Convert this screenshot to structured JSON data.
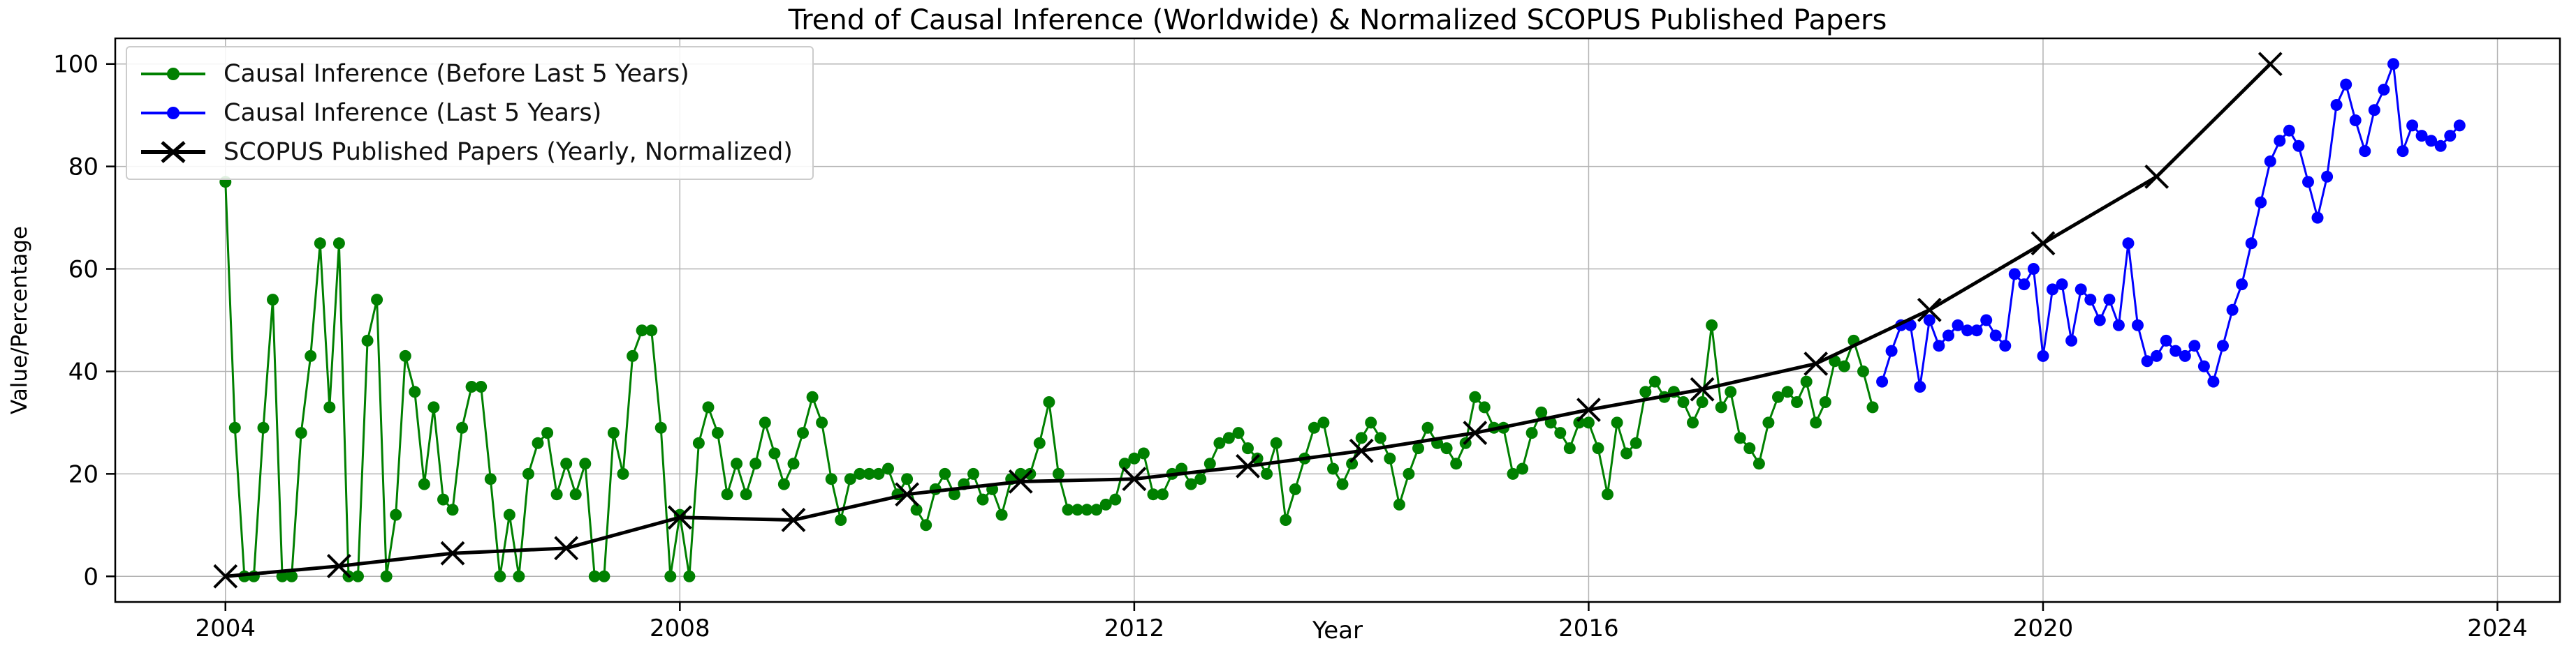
{
  "title": "Trend of Causal Inference (Worldwide) & Normalized SCOPUS Published Papers",
  "chart_data": {
    "type": "line",
    "title": "Trend of Causal Inference (Worldwide) & Normalized SCOPUS Published Papers",
    "xlabel": "Year",
    "ylabel": "Value/Percentage",
    "xlim": [
      2003.03,
      2024.55
    ],
    "ylim": [
      -5,
      105
    ],
    "grid": true,
    "grid_color": "#b3b3b3",
    "axis_color": "#000000",
    "background_color": "#ffffff",
    "x_ticks": [
      2004,
      2008,
      2012,
      2016,
      2020,
      2024
    ],
    "y_ticks": [
      0,
      20,
      40,
      60,
      80,
      100
    ],
    "legend_position": "upper-left",
    "series": [
      {
        "name": "Causal Inference (Before Last 5 Years)",
        "color": "#008000",
        "marker": "circle",
        "line_width": 3,
        "x_start": 2004.0,
        "x_step_years": 0.0833333,
        "values": [
          77,
          29,
          0,
          0,
          29,
          54,
          0,
          0,
          28,
          43,
          65,
          33,
          65,
          0,
          0,
          46,
          54,
          0,
          12,
          43,
          36,
          18,
          33,
          15,
          13,
          29,
          37,
          37,
          19,
          0,
          12,
          0,
          20,
          26,
          28,
          16,
          22,
          16,
          22,
          0,
          0,
          28,
          20,
          43,
          48,
          48,
          29,
          0,
          12,
          0,
          26,
          33,
          28,
          16,
          22,
          16,
          22,
          30,
          24,
          18,
          22,
          28,
          35,
          30,
          19,
          11,
          19,
          20,
          20,
          20,
          21,
          16,
          19,
          13,
          10,
          17,
          20,
          16,
          18,
          20,
          15,
          17,
          12,
          19,
          20,
          20,
          26,
          34,
          20,
          13,
          13,
          13,
          13,
          14,
          15,
          22,
          23,
          24,
          16,
          16,
          20,
          21,
          18,
          19,
          22,
          26,
          27,
          28,
          25,
          23,
          20,
          26,
          11,
          17,
          23,
          29,
          30,
          21,
          18,
          22,
          27,
          30,
          27,
          23,
          14,
          20,
          25,
          29,
          26,
          25,
          22,
          26,
          35,
          33,
          29,
          29,
          20,
          21,
          28,
          32,
          30,
          28,
          25,
          30,
          30,
          25,
          16,
          30,
          24,
          26,
          36,
          38,
          35,
          36,
          34,
          30,
          34,
          49,
          33,
          36,
          27,
          25,
          22,
          30,
          35,
          36,
          34,
          38,
          30,
          34,
          42,
          41,
          46,
          40,
          33
        ]
      },
      {
        "name": "Causal Inference (Last 5 Years)",
        "color": "#0000ff",
        "marker": "circle",
        "line_width": 3,
        "x_start": 2018.5833,
        "x_step_years": 0.0833333,
        "values": [
          38,
          44,
          49,
          49,
          37,
          50,
          45,
          47,
          49,
          48,
          48,
          50,
          47,
          45,
          59,
          57,
          60,
          43,
          56,
          57,
          46,
          56,
          54,
          50,
          54,
          49,
          65,
          49,
          42,
          43,
          46,
          44,
          43,
          45,
          41,
          38,
          45,
          52,
          57,
          65,
          73,
          81,
          85,
          87,
          84,
          77,
          70,
          78,
          92,
          96,
          89,
          83,
          91,
          95,
          100,
          83,
          88,
          86,
          85,
          84,
          86,
          88
        ]
      },
      {
        "name": "SCOPUS Published Papers (Yearly, Normalized)",
        "color": "#000000",
        "marker": "x",
        "line_width": 5,
        "x_start": 2004,
        "x_step_years": 1,
        "values": [
          0,
          2,
          4.5,
          5.5,
          11.5,
          11,
          16,
          18.5,
          19,
          21.5,
          24.5,
          28,
          32.5,
          36.5,
          41.5,
          52,
          65,
          78,
          100
        ]
      }
    ]
  }
}
